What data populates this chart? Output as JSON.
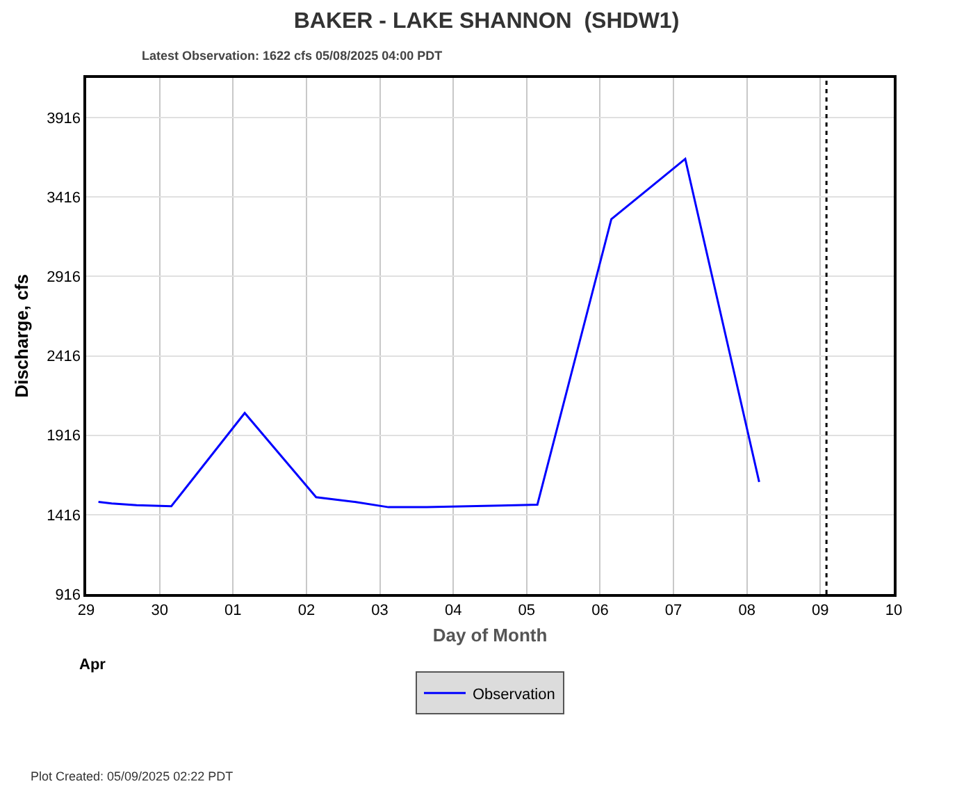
{
  "chart_data": {
    "type": "line",
    "title": "BAKER - LAKE SHANNON  (SHDW1)",
    "subtitle": "Latest Observation: 1622 cfs 05/08/2025 04:00 PDT",
    "xlabel": "Day of Month",
    "ylabel": "Discharge, cfs",
    "annotations": [
      "Apr",
      "Plot Created: 05/09/2025 02:22 PDT"
    ],
    "x": [
      "2025-04-29T04:00",
      "2025-04-29T08:20",
      "2025-04-29T16:30",
      "2025-04-30T03:50",
      "2025-05-01T03:50",
      "2025-05-02T03:10",
      "2025-05-02T15:50",
      "2025-05-03T02:50",
      "2025-05-03T15:20",
      "2025-05-04T15:40",
      "2025-05-05T03:30",
      "2025-05-06T03:40",
      "2025-05-07T03:50",
      "2025-05-08T04:00"
    ],
    "series": [
      {
        "name": "Observation",
        "color": "#0000ff",
        "values": [
          1496,
          1486,
          1476,
          1469,
          2056,
          1526,
          1496,
          1463,
          1463,
          1473,
          1479,
          3276,
          3656,
          1622
        ]
      }
    ],
    "xlim": [
      "2025-04-29",
      "2025-05-10"
    ],
    "xticks": [
      {
        "value": "2025-04-29",
        "label": "29"
      },
      {
        "value": "2025-04-30",
        "label": "30"
      },
      {
        "value": "2025-05-01",
        "label": "01"
      },
      {
        "value": "2025-05-02",
        "label": "02"
      },
      {
        "value": "2025-05-03",
        "label": "03"
      },
      {
        "value": "2025-05-04",
        "label": "04"
      },
      {
        "value": "2025-05-05",
        "label": "05"
      },
      {
        "value": "2025-05-06",
        "label": "06"
      },
      {
        "value": "2025-05-07",
        "label": "07"
      },
      {
        "value": "2025-05-08",
        "label": "08"
      },
      {
        "value": "2025-05-09",
        "label": "09"
      },
      {
        "value": "2025-05-10",
        "label": "10"
      }
    ],
    "ylim": [
      916,
      4166
    ],
    "yticks": [
      916,
      1416,
      1916,
      2416,
      2916,
      3416,
      3916
    ],
    "ref_lines": [
      {
        "axis": "x",
        "value": "2025-05-09T02:00",
        "color": "#000000",
        "line_style": "dotted"
      }
    ],
    "grid": true,
    "legend": "bottom",
    "marker": "none",
    "line_style": "solid"
  }
}
